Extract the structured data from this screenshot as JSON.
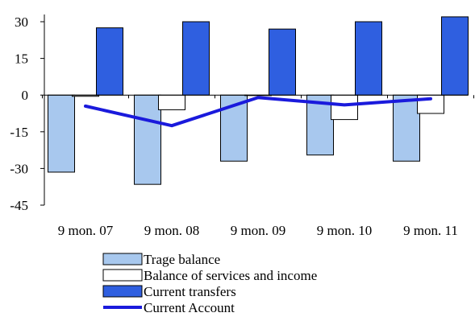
{
  "chart_data": {
    "type": "bar",
    "title": "",
    "xlabel": "",
    "ylabel": "",
    "categories": [
      "9 mon. 07",
      "9 mon. 08",
      "9 mon. 09",
      "9 mon. 10",
      "9 mon. 11"
    ],
    "ylim": [
      -45,
      30
    ],
    "yticks": [
      30,
      15,
      0,
      -15,
      -30,
      -45
    ],
    "grid": false,
    "legend_position": "bottom",
    "series": [
      {
        "name": "Trage balance",
        "kind": "bar",
        "color": "#a8c8ee",
        "values": [
          -31.5,
          -36.5,
          -27,
          -24.5,
          -27
        ]
      },
      {
        "name": "Balance of services and income",
        "kind": "bar",
        "color": "#ffffff",
        "values": [
          -0.5,
          -6,
          0,
          -10,
          -7.5
        ]
      },
      {
        "name": "Current transfers",
        "kind": "bar",
        "color": "#2f5fe0",
        "values": [
          27.5,
          30,
          27,
          30,
          32
        ]
      },
      {
        "name": "Current Account",
        "kind": "line",
        "color": "#1a1adc",
        "values": [
          -4.5,
          -12.5,
          -1,
          -4,
          -1.5
        ]
      }
    ]
  }
}
